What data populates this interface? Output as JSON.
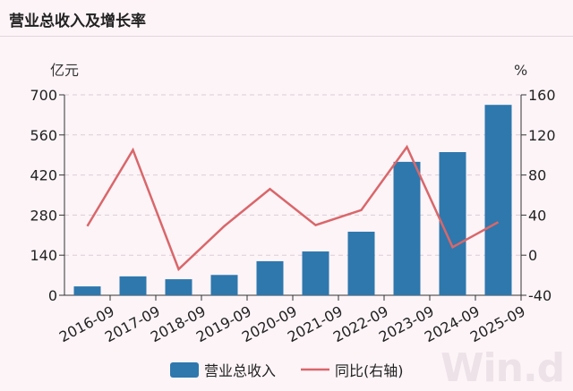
{
  "title": "营业总收入及增长率",
  "watermark": "Win.d",
  "chart_data": {
    "type": "bar+line",
    "categories": [
      "2016-09",
      "2017-09",
      "2018-09",
      "2019-09",
      "2020-09",
      "2021-09",
      "2022-09",
      "2023-09",
      "2024-09",
      "2025-09"
    ],
    "series": [
      {
        "name": "营业总收入",
        "type": "bar",
        "axis": "left",
        "color": "#2e78ad",
        "values": [
          31,
          66,
          56,
          71,
          119,
          153,
          222,
          466,
          500,
          665
        ]
      },
      {
        "name": "同比(右轴)",
        "type": "line",
        "axis": "right",
        "color": "#d9676a",
        "values": [
          29,
          105,
          -14,
          29,
          66,
          30,
          45,
          108,
          8,
          33
        ]
      }
    ],
    "left_axis": {
      "unit": "亿元",
      "range": [
        0,
        700
      ],
      "ticks": [
        0,
        140,
        280,
        420,
        560,
        700
      ]
    },
    "right_axis": {
      "unit": "%",
      "range": [
        -40,
        160
      ],
      "ticks": [
        -40,
        0,
        40,
        80,
        120,
        160
      ]
    },
    "grid": "horizontal-dashed",
    "legend": "bottom"
  }
}
